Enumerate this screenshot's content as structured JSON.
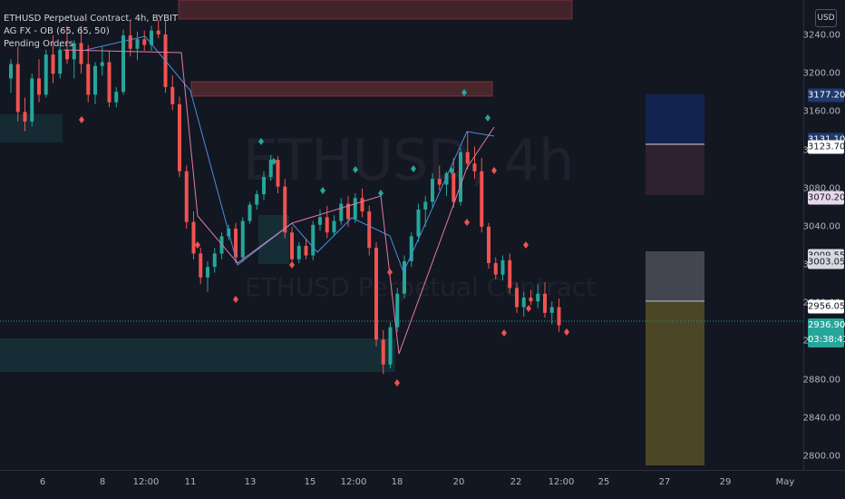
{
  "legend": {
    "symbol": "ETHUSD Perpetual Contract, 4h, BYBIT",
    "indicator": "AG FX - OB (65, 65, 50)",
    "pending": "Pending Orders"
  },
  "watermark": {
    "line1": "ETHUSD, 4h",
    "line2": "ETHUSD Perpetual Contract"
  },
  "price_axis": {
    "currency": "USD",
    "ticks": [
      "3240.00",
      "3200.00",
      "3160.00",
      "3120.00",
      "3080.00",
      "3040.00",
      "3000.00",
      "2960.00",
      "2920.00",
      "2880.00",
      "2840.00",
      "2800.00"
    ],
    "tags": [
      {
        "label": "3177.20",
        "bg": "#1f3a6e",
        "fg": "#ffffff"
      },
      {
        "label": "3131.10",
        "bg": "#1f3a6e",
        "fg": "#ffffff"
      },
      {
        "label": "3123.70",
        "bg": "#ffffff",
        "fg": "#131722"
      },
      {
        "label": "3070.20",
        "bg": "#e8d8ec",
        "fg": "#131722"
      },
      {
        "label": "3009.55",
        "bg": "#d8d8e0",
        "fg": "#131722"
      },
      {
        "label": "3003.05",
        "bg": "#d8d8e0",
        "fg": "#131722"
      },
      {
        "label": "2956.05",
        "bg": "#ffffff",
        "fg": "#131722"
      }
    ],
    "current_price": "2936.90",
    "countdown": "03:38:41"
  },
  "time_axis": {
    "labels": [
      "6",
      "8",
      "12:00",
      "11",
      "13",
      "15",
      "12:00",
      "18",
      "20",
      "22",
      "12:00",
      "25",
      "27",
      "29",
      "May"
    ]
  },
  "colors": {
    "bg": "#131722",
    "up": "#26a69a",
    "down": "#ef5350",
    "zigzag_up": "#4a8fd8",
    "zigzag_down": "#e07aa6"
  },
  "chart_data": {
    "type": "candlestick",
    "symbol": "ETHUSD Perpetual Contract",
    "timeframe": "4h",
    "ylim": [
      2780,
      3260
    ],
    "candles_ohlc": [
      [
        3195,
        3215,
        3180,
        3210
      ],
      [
        3210,
        3228,
        3150,
        3160
      ],
      [
        3160,
        3175,
        3140,
        3150
      ],
      [
        3150,
        3200,
        3145,
        3195
      ],
      [
        3195,
        3215,
        3170,
        3178
      ],
      [
        3178,
        3225,
        3175,
        3220
      ],
      [
        3220,
        3240,
        3190,
        3200
      ],
      [
        3200,
        3230,
        3195,
        3225
      ],
      [
        3225,
        3250,
        3210,
        3215
      ],
      [
        3215,
        3235,
        3195,
        3232
      ],
      [
        3232,
        3250,
        3200,
        3210
      ],
      [
        3210,
        3230,
        3170,
        3178
      ],
      [
        3178,
        3212,
        3168,
        3208
      ],
      [
        3208,
        3228,
        3198,
        3212
      ],
      [
        3212,
        3224,
        3165,
        3170
      ],
      [
        3170,
        3186,
        3165,
        3181
      ],
      [
        3181,
        3246,
        3178,
        3240
      ],
      [
        3240,
        3254,
        3218,
        3226
      ],
      [
        3226,
        3244,
        3214,
        3236
      ],
      [
        3236,
        3245,
        3224,
        3230
      ],
      [
        3230,
        3250,
        3224,
        3245
      ],
      [
        3245,
        3256,
        3237,
        3241
      ],
      [
        3241,
        3255,
        3180,
        3186
      ],
      [
        3186,
        3198,
        3162,
        3168
      ],
      [
        3168,
        3176,
        3092,
        3098
      ],
      [
        3098,
        3104,
        3038,
        3045
      ],
      [
        3045,
        3056,
        3006,
        3012
      ],
      [
        3012,
        3018,
        2980,
        2987
      ],
      [
        2987,
        3004,
        2972,
        2998
      ],
      [
        2998,
        3018,
        2992,
        3012
      ],
      [
        3012,
        3034,
        3006,
        3030
      ],
      [
        3030,
        3042,
        3026,
        3038
      ],
      [
        3038,
        3044,
        3002,
        3008
      ],
      [
        3008,
        3050,
        3003,
        3046
      ],
      [
        3046,
        3066,
        3043,
        3063
      ],
      [
        3063,
        3078,
        3058,
        3074
      ],
      [
        3074,
        3098,
        3068,
        3092
      ],
      [
        3092,
        3115,
        3088,
        3110
      ],
      [
        3110,
        3114,
        3075,
        3082
      ],
      [
        3082,
        3090,
        3028,
        3034
      ],
      [
        3034,
        3040,
        3000,
        3006
      ],
      [
        3006,
        3024,
        3002,
        3020
      ],
      [
        3020,
        3028,
        3006,
        3010
      ],
      [
        3010,
        3046,
        3005,
        3042
      ],
      [
        3042,
        3058,
        3036,
        3050
      ],
      [
        3050,
        3062,
        3028,
        3034
      ],
      [
        3034,
        3052,
        3030,
        3046
      ],
      [
        3046,
        3070,
        3042,
        3064
      ],
      [
        3064,
        3072,
        3040,
        3048
      ],
      [
        3048,
        3075,
        3044,
        3070
      ],
      [
        3070,
        3080,
        3050,
        3056
      ],
      [
        3056,
        3062,
        3010,
        3018
      ],
      [
        3018,
        3024,
        2915,
        2922
      ],
      [
        2922,
        2932,
        2886,
        2896
      ],
      [
        2896,
        2940,
        2892,
        2935
      ],
      [
        2935,
        2976,
        2930,
        2970
      ],
      [
        2970,
        3010,
        2965,
        3004
      ],
      [
        3004,
        3034,
        2998,
        3030
      ],
      [
        3030,
        3064,
        3024,
        3058
      ],
      [
        3058,
        3072,
        3040,
        3066
      ],
      [
        3066,
        3096,
        3060,
        3090
      ],
      [
        3090,
        3104,
        3078,
        3084
      ],
      [
        3084,
        3098,
        3072,
        3096
      ],
      [
        3096,
        3112,
        3060,
        3066
      ],
      [
        3066,
        3122,
        3062,
        3118
      ],
      [
        3118,
        3140,
        3100,
        3106
      ],
      [
        3106,
        3124,
        3090,
        3098
      ],
      [
        3098,
        3112,
        3034,
        3040
      ],
      [
        3040,
        3044,
        2996,
        3002
      ],
      [
        3002,
        3008,
        2985,
        2990
      ],
      [
        2990,
        3010,
        2984,
        3005
      ],
      [
        3005,
        3012,
        2970,
        2976
      ],
      [
        2976,
        2982,
        2950,
        2956
      ],
      [
        2956,
        2972,
        2946,
        2966
      ],
      [
        2966,
        2974,
        2958,
        2962
      ],
      [
        2962,
        2980,
        2955,
        2970
      ],
      [
        2970,
        2982,
        2945,
        2950
      ],
      [
        2950,
        2962,
        2938,
        2956
      ],
      [
        2956,
        2965,
        2930,
        2937
      ]
    ]
  }
}
